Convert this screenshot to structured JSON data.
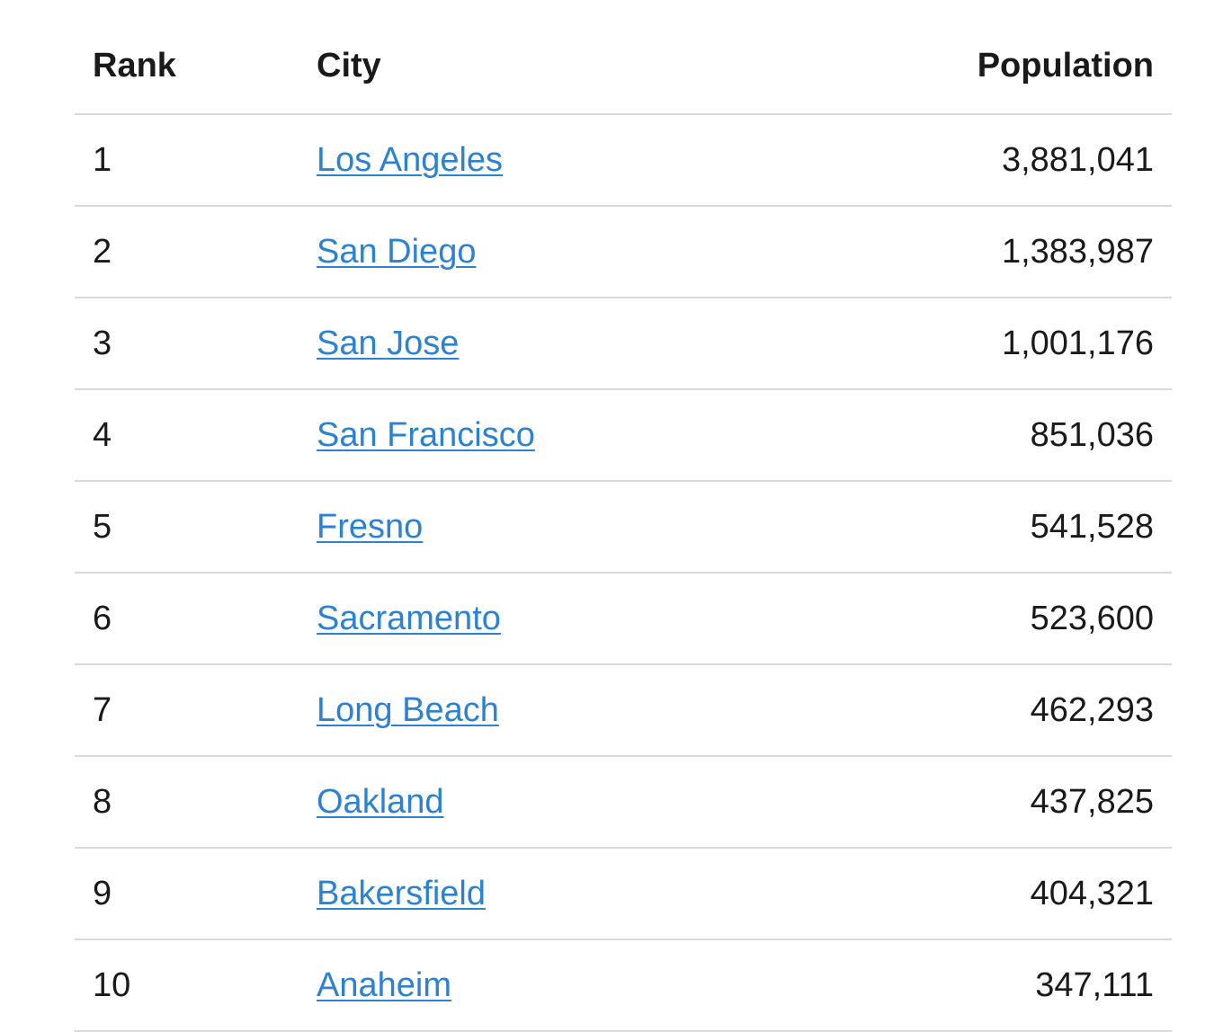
{
  "table": {
    "headers": {
      "rank": "Rank",
      "city": "City",
      "population": "Population"
    },
    "rows": [
      {
        "rank": "1",
        "city": "Los Angeles",
        "population": "3,881,041"
      },
      {
        "rank": "2",
        "city": "San Diego",
        "population": "1,383,987"
      },
      {
        "rank": "3",
        "city": "San Jose",
        "population": "1,001,176"
      },
      {
        "rank": "4",
        "city": "San Francisco",
        "population": "851,036"
      },
      {
        "rank": "5",
        "city": "Fresno",
        "population": "541,528"
      },
      {
        "rank": "6",
        "city": "Sacramento",
        "population": "523,600"
      },
      {
        "rank": "7",
        "city": "Long Beach",
        "population": "462,293"
      },
      {
        "rank": "8",
        "city": "Oakland",
        "population": "437,825"
      },
      {
        "rank": "9",
        "city": "Bakersfield",
        "population": "404,321"
      },
      {
        "rank": "10",
        "city": "Anaheim",
        "population": "347,111"
      }
    ]
  },
  "colors": {
    "link": "#2b82d4",
    "text": "#1a1a1a",
    "border": "#d9d9d9"
  }
}
